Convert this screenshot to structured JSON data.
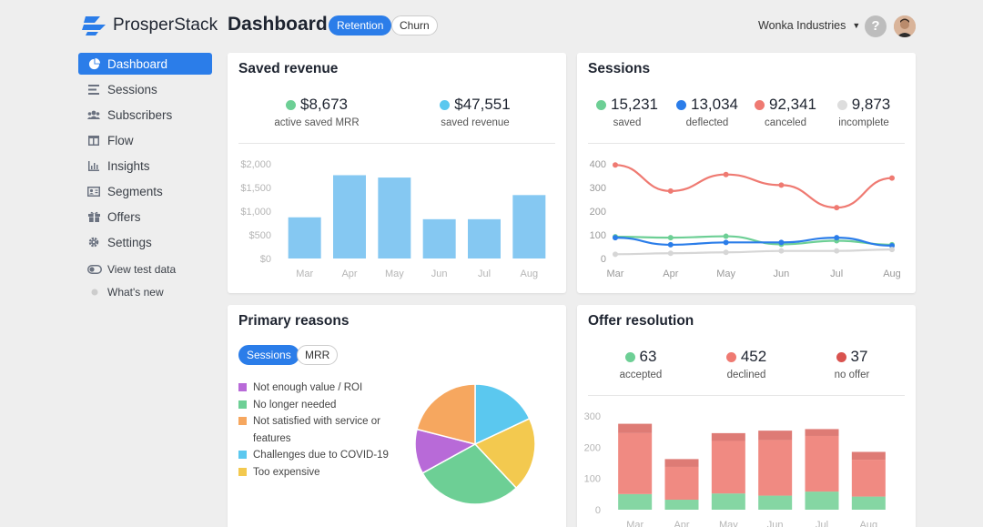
{
  "header": {
    "brand": "ProsperStack",
    "title": "Dashboard",
    "tabs": [
      {
        "label": "Retention",
        "active": true
      },
      {
        "label": "Churn",
        "active": false
      }
    ],
    "company": "Wonka Industries",
    "help": "?"
  },
  "sidebar": {
    "items": [
      {
        "label": "Dashboard",
        "icon": "pie-chart-icon",
        "active": true
      },
      {
        "label": "Sessions",
        "icon": "list-icon"
      },
      {
        "label": "Subscribers",
        "icon": "users-icon"
      },
      {
        "label": "Flow",
        "icon": "flow-icon"
      },
      {
        "label": "Insights",
        "icon": "bar-chart-icon"
      },
      {
        "label": "Segments",
        "icon": "id-card-icon"
      },
      {
        "label": "Offers",
        "icon": "gift-icon"
      },
      {
        "label": "Settings",
        "icon": "gear-icon"
      }
    ],
    "view_test_data": "View test data",
    "whats_new": "What's new"
  },
  "saved_revenue": {
    "title": "Saved revenue",
    "stats": [
      {
        "value": "$8,673",
        "label": "active saved MRR",
        "color": "#6dcf95"
      },
      {
        "value": "$47,551",
        "label": "saved revenue",
        "color": "#5bc8ef"
      }
    ]
  },
  "sessions": {
    "title": "Sessions",
    "stats": [
      {
        "value": "15,231",
        "label": "saved",
        "color": "#6dcf95"
      },
      {
        "value": "13,034",
        "label": "deflected",
        "color": "#2b7de9"
      },
      {
        "value": "92,341",
        "label": "canceled",
        "color": "#ef7a72"
      },
      {
        "value": "9,873",
        "label": "incomplete",
        "color": "#dddddd"
      }
    ]
  },
  "primary_reasons": {
    "title": "Primary reasons",
    "toggle": [
      {
        "label": "Sessions",
        "active": true
      },
      {
        "label": "MRR",
        "active": false
      }
    ]
  },
  "offer_resolution": {
    "title": "Offer resolution",
    "stats": [
      {
        "value": "63",
        "label": "accepted",
        "color": "#6dcf95"
      },
      {
        "value": "452",
        "label": "declined",
        "color": "#ef7a72"
      },
      {
        "value": "37",
        "label": "no offer",
        "color": "#d9534f"
      }
    ]
  },
  "chart_data": [
    {
      "id": "saved-revenue",
      "type": "bar",
      "categories": [
        "Mar",
        "Apr",
        "May",
        "Jun",
        "Jul",
        "Aug"
      ],
      "values": [
        870,
        1760,
        1710,
        830,
        830,
        1340
      ],
      "ylim": [
        0,
        2000
      ],
      "yticks": [
        0,
        500,
        1000,
        1500,
        2000
      ],
      "yticklabels": [
        "$0",
        "$500",
        "$1,000",
        "$1,500",
        "$2,000"
      ],
      "color": "#85c8f2"
    },
    {
      "id": "sessions",
      "type": "line",
      "categories": [
        "Mar",
        "Apr",
        "May",
        "Jun",
        "Jul",
        "Aug"
      ],
      "ylim": [
        0,
        400
      ],
      "yticks": [
        0,
        100,
        200,
        300,
        400
      ],
      "series": [
        {
          "name": "canceled",
          "color": "#ef7a72",
          "values": [
            395,
            285,
            355,
            310,
            215,
            340
          ]
        },
        {
          "name": "saved",
          "color": "#6dcf95",
          "values": [
            92,
            88,
            94,
            60,
            75,
            58
          ]
        },
        {
          "name": "deflected",
          "color": "#2b7de9",
          "values": [
            88,
            58,
            68,
            68,
            88,
            54
          ]
        },
        {
          "name": "incomplete",
          "color": "#d6d6d6",
          "values": [
            18,
            22,
            26,
            32,
            32,
            38
          ]
        }
      ]
    },
    {
      "id": "primary-reasons",
      "type": "pie",
      "slices": [
        {
          "label": "Not enough value / ROI",
          "value": 12,
          "color": "#b86ad8"
        },
        {
          "label": "No longer needed",
          "value": 29,
          "color": "#6dcf95"
        },
        {
          "label": "Not satisfied with service or features",
          "value": 21,
          "color": "#f6a75f"
        },
        {
          "label": "Challenges due to COVID-19",
          "value": 18,
          "color": "#5bc8ef"
        },
        {
          "label": "Too expensive",
          "value": 20,
          "color": "#f3c94f"
        }
      ]
    },
    {
      "id": "offer-resolution",
      "type": "bar",
      "stacked": true,
      "categories": [
        "Mar",
        "Apr",
        "May",
        "Jun",
        "Jul",
        "Aug"
      ],
      "ylim": [
        0,
        300
      ],
      "yticks": [
        0,
        100,
        200,
        300
      ],
      "series": [
        {
          "name": "accepted",
          "color": "#85d6a3",
          "values": [
            50,
            32,
            52,
            45,
            58,
            42
          ]
        },
        {
          "name": "declined",
          "color": "#f08a82",
          "values": [
            195,
            105,
            168,
            178,
            178,
            118
          ]
        },
        {
          "name": "no offer",
          "color": "#de7b75",
          "values": [
            30,
            25,
            25,
            30,
            22,
            25
          ]
        }
      ]
    }
  ]
}
